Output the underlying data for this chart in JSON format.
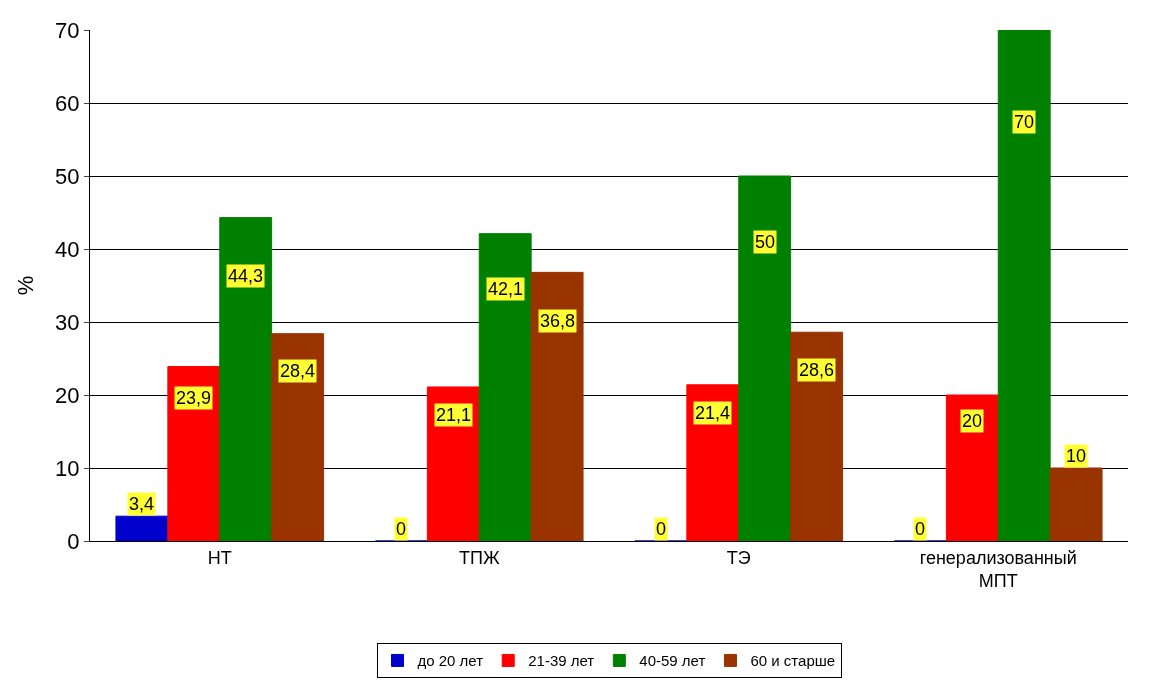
{
  "chart_data": {
    "type": "bar",
    "ylabel": "%",
    "categories": [
      "НТ",
      "ТПЖ",
      "ТЭ",
      "генерализованный\nМПТ"
    ],
    "series": [
      {
        "name": "до 20 лет",
        "color": "#0000cc",
        "values": [
          3.4,
          0,
          0,
          0
        ],
        "value_labels": [
          "3,4",
          "0",
          "0",
          "0"
        ]
      },
      {
        "name": "21-39 лет",
        "color": "#ff0000",
        "values": [
          23.9,
          21.1,
          21.4,
          20
        ],
        "value_labels": [
          "23,9",
          "21,1",
          "21,4",
          "20"
        ]
      },
      {
        "name": "40-59 лет",
        "color": "#008000",
        "values": [
          44.3,
          42.1,
          50,
          70
        ],
        "value_labels": [
          "44,3",
          "42,1",
          "50",
          "70"
        ]
      },
      {
        "name": "60 и старше",
        "color": "#993300",
        "values": [
          28.4,
          36.8,
          28.6,
          10
        ],
        "value_labels": [
          "28,4",
          "36,8",
          "28,6",
          "10"
        ]
      }
    ],
    "ylim": [
      0,
      70
    ],
    "yticks": [
      0,
      10,
      20,
      30,
      40,
      50,
      60,
      70
    ],
    "grid": "y",
    "legend": "bottom"
  }
}
